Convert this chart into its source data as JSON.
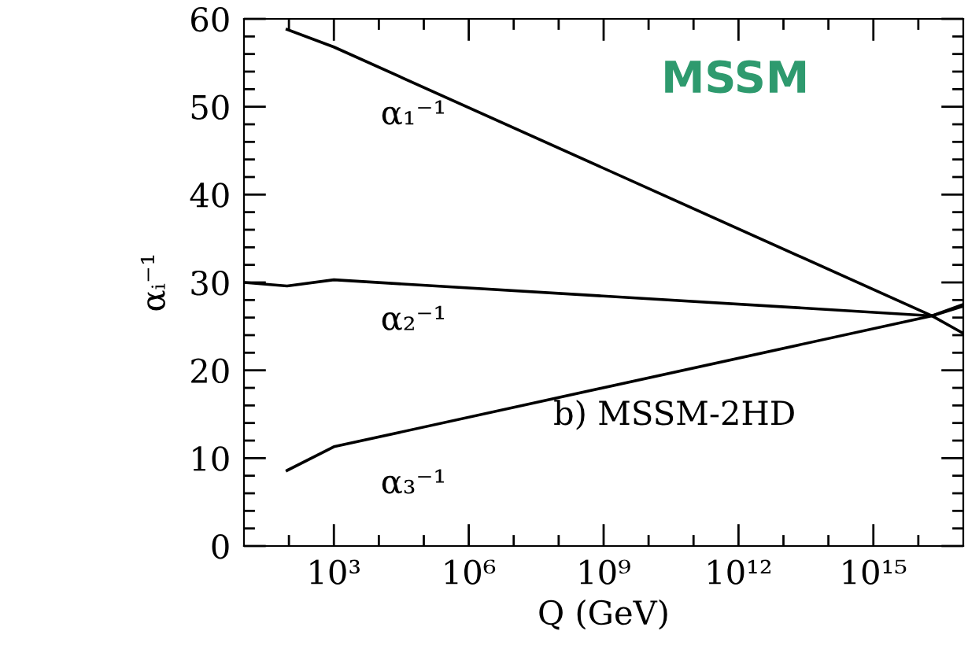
{
  "chart_data": {
    "type": "line",
    "xlabel": "Q (GeV)",
    "ylabel": "αᵢ⁻¹",
    "log": "x",
    "grid": false,
    "legend": false,
    "line_style": "solid",
    "marker": "none",
    "series": [
      {
        "color": "#000000",
        "x": [
          91,
          1000,
          2e+16,
          1e+17
        ],
        "values": [
          58.8,
          56.8,
          26.2,
          24.2
        ]
      },
      {
        "color": "#000000",
        "x": [
          10,
          91,
          1000,
          2e+16,
          1e+17
        ],
        "values": [
          30.0,
          29.6,
          30.3,
          26.2,
          27.3
        ]
      },
      {
        "color": "#000000",
        "x": [
          91,
          1000,
          2e+16,
          1e+17
        ],
        "values": [
          8.6,
          11.3,
          26.2,
          27.5
        ]
      }
    ],
    "xlim": [
      10,
      1e+17
    ],
    "xticks": [
      {
        "value": 100,
        "label": null
      },
      {
        "value": 1000,
        "label": "10³"
      },
      {
        "value": 10000.0,
        "label": null
      },
      {
        "value": 100000.0,
        "label": null
      },
      {
        "value": 1000000.0,
        "label": "10⁶"
      },
      {
        "value": 10000000.0,
        "label": null
      },
      {
        "value": 100000000.0,
        "label": null
      },
      {
        "value": 1000000000.0,
        "label": "10⁹"
      },
      {
        "value": 10000000000.0,
        "label": null
      },
      {
        "value": 100000000000.0,
        "label": null
      },
      {
        "value": 1000000000000.0,
        "label": "10¹²"
      },
      {
        "value": 10000000000000.0,
        "label": null
      },
      {
        "value": 100000000000000.0,
        "label": null
      },
      {
        "value": 1000000000000000.0,
        "label": "10¹⁵"
      },
      {
        "value": 1e+16,
        "label": null
      }
    ],
    "ylim": [
      0,
      60
    ],
    "yticks": [
      0,
      {
        "value": 2,
        "label": null
      },
      {
        "value": 4,
        "label": null
      },
      {
        "value": 6,
        "label": null
      },
      {
        "value": 8,
        "label": null
      },
      10,
      {
        "value": 12,
        "label": null
      },
      {
        "value": 14,
        "label": null
      },
      {
        "value": 16,
        "label": null
      },
      {
        "value": 18,
        "label": null
      },
      20,
      {
        "value": 22,
        "label": null
      },
      {
        "value": 24,
        "label": null
      },
      {
        "value": 26,
        "label": null
      },
      {
        "value": 28,
        "label": null
      },
      30,
      {
        "value": 32,
        "label": null
      },
      {
        "value": 34,
        "label": null
      },
      {
        "value": 36,
        "label": null
      },
      {
        "value": 38,
        "label": null
      },
      40,
      {
        "value": 42,
        "label": null
      },
      {
        "value": 44,
        "label": null
      },
      {
        "value": 46,
        "label": null
      },
      {
        "value": 48,
        "label": null
      },
      50,
      {
        "value": 52,
        "label": null
      },
      {
        "value": 54,
        "label": null
      },
      {
        "value": 56,
        "label": null
      },
      {
        "value": 58,
        "label": null
      },
      60
    ],
    "annotations": [
      "α₁⁻¹",
      "α₂⁻¹",
      "α₃⁻¹",
      "b) MSSM-2HD",
      "MSSM"
    ]
  }
}
